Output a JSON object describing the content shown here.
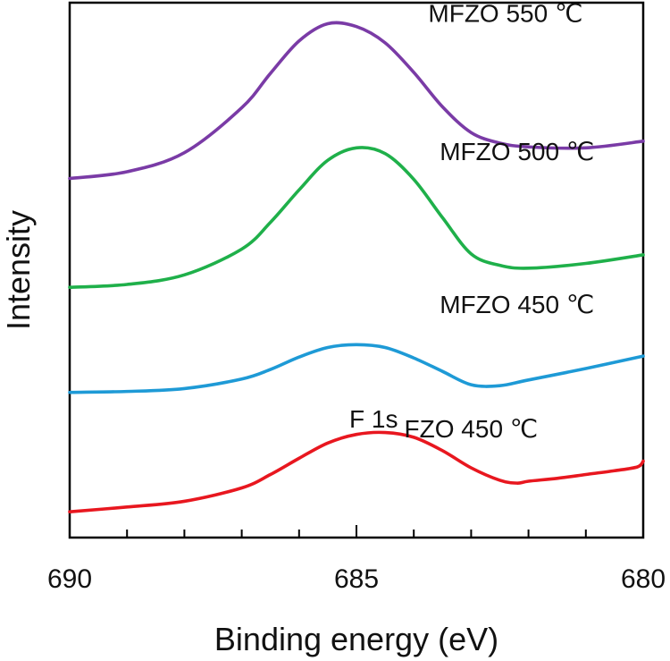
{
  "chart_data": {
    "type": "line",
    "xlabel": "Binding energy (eV)",
    "ylabel": "Intensity",
    "x_reversed": true,
    "xlim": [
      690,
      680
    ],
    "ylim": [
      0,
      5.6
    ],
    "x_ticks": [
      "690",
      "685",
      "680"
    ],
    "x_tick_values": [
      690,
      685,
      680
    ],
    "minor_tick_step": 1,
    "grid": false,
    "colors": {
      "FZO 450 ℃": "#e8171f",
      "MFZO 450 ℃": "#1e9ad6",
      "MFZO 500 ℃": "#1fb04a",
      "MFZO 550 ℃": "#7a3ba6"
    },
    "annotation": {
      "text": "F 1s",
      "x": 684.7,
      "y": 1.15
    },
    "series": [
      {
        "name": "FZO 450 ℃",
        "x": [
          690,
          689,
          688,
          687,
          686.5,
          686,
          685.5,
          685,
          684.5,
          684,
          683.5,
          683,
          682.5,
          682.2,
          682,
          681.5,
          681,
          680.5,
          680.1,
          680
        ],
        "y": [
          0.27,
          0.32,
          0.38,
          0.52,
          0.66,
          0.83,
          0.99,
          1.08,
          1.1,
          1.05,
          0.91,
          0.73,
          0.6,
          0.57,
          0.59,
          0.62,
          0.66,
          0.7,
          0.74,
          0.8
        ]
      },
      {
        "name": "MFZO 450 ℃",
        "x": [
          690,
          689,
          688,
          687,
          686.5,
          686,
          685.5,
          685,
          684.5,
          684,
          683.5,
          683,
          682.5,
          682,
          681,
          680
        ],
        "y": [
          1.52,
          1.53,
          1.56,
          1.66,
          1.76,
          1.89,
          1.99,
          2.02,
          1.99,
          1.88,
          1.74,
          1.6,
          1.59,
          1.65,
          1.77,
          1.9
        ]
      },
      {
        "name": "MFZO 500 ℃",
        "x": [
          690,
          689,
          688,
          687,
          686.5,
          686,
          685.5,
          685,
          684.5,
          684,
          683.5,
          683,
          682.5,
          682,
          681,
          680
        ],
        "y": [
          2.62,
          2.65,
          2.75,
          3.02,
          3.3,
          3.64,
          3.95,
          4.08,
          4.02,
          3.75,
          3.35,
          2.97,
          2.85,
          2.82,
          2.87,
          2.96
        ]
      },
      {
        "name": "MFZO 550 ℃",
        "x": [
          690,
          689,
          688,
          687,
          686.5,
          686,
          685.5,
          685,
          684.5,
          684,
          683.5,
          683,
          682.5,
          682,
          681,
          680
        ],
        "y": [
          3.76,
          3.83,
          4.03,
          4.5,
          4.86,
          5.2,
          5.38,
          5.35,
          5.18,
          4.87,
          4.51,
          4.24,
          4.13,
          4.09,
          4.08,
          4.15
        ]
      }
    ],
    "series_labels": [
      {
        "text": "FZO 450 ℃",
        "x": 683.0,
        "y": 1.05
      },
      {
        "text": "MFZO 450 ℃",
        "x": 682.2,
        "y": 2.35
      },
      {
        "text": "MFZO 500 ℃",
        "x": 682.2,
        "y": 3.95
      },
      {
        "text": "MFZO 550 ℃",
        "x": 682.4,
        "y": 5.4
      }
    ]
  }
}
